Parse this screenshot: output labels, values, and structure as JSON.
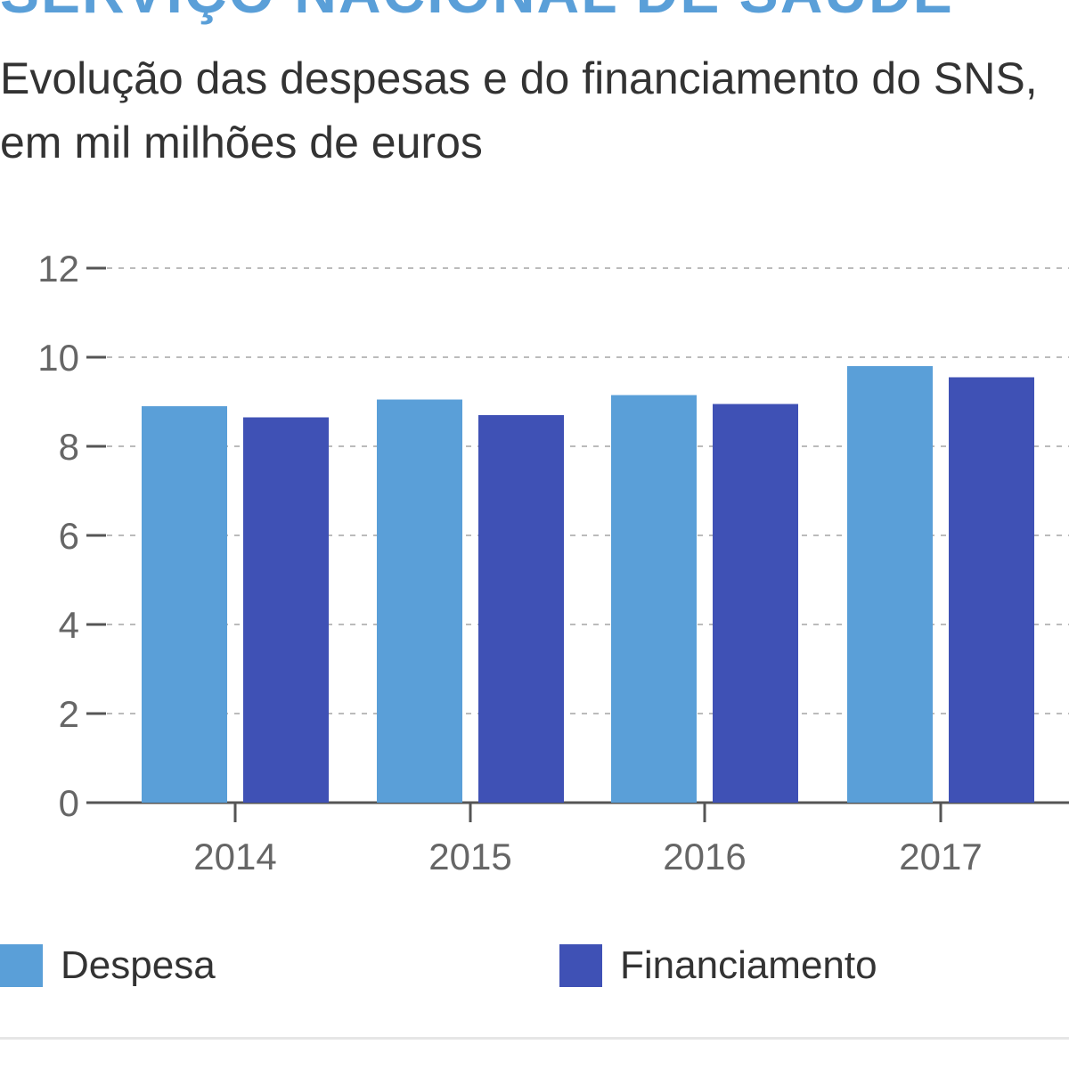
{
  "header": {
    "title": "SERVIÇO NACIONAL DE SAÚDE",
    "subtitle": "Evolução das despesas e do financiamento do SNS, em mil milhões de euros"
  },
  "colors": {
    "title": "#5a9fd8",
    "despesa": "#5a9fd8",
    "financiamento": "#3f51b5",
    "grid": "#bbbbbb",
    "axis": "#555555",
    "tick_text": "#666666"
  },
  "chart_data": {
    "type": "bar",
    "title": "SERVIÇO NACIONAL DE SAÚDE",
    "subtitle": "Evolução das despesas e do financiamento do SNS, em mil milhões de euros",
    "categories": [
      "2014",
      "2015",
      "2016",
      "2017"
    ],
    "series": [
      {
        "name": "Despesa",
        "values": [
          8.9,
          9.05,
          9.15,
          9.8
        ]
      },
      {
        "name": "Financiamento",
        "values": [
          8.65,
          8.7,
          8.95,
          9.55
        ]
      }
    ],
    "y_ticks": [
      "0",
      "2",
      "4",
      "6",
      "8",
      "10",
      "12"
    ],
    "ylim": [
      0,
      12
    ],
    "grid": true,
    "legend": "bottom",
    "xlabel": "",
    "ylabel": ""
  },
  "legend": {
    "items": [
      {
        "label": "Despesa",
        "color": "#5a9fd8"
      },
      {
        "label": "Financiamento",
        "color": "#3f51b5"
      }
    ]
  }
}
